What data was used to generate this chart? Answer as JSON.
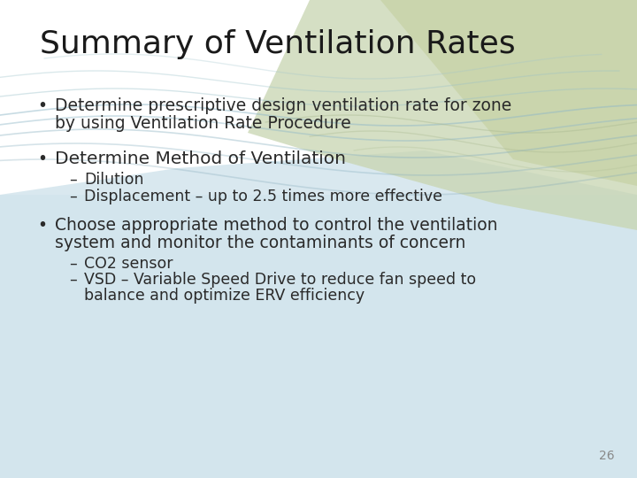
{
  "title": "Summary of Ventilation Rates",
  "title_fontsize": 26,
  "title_color": "#1A1A1A",
  "bullet1_line1": "Determine prescriptive design ventilation rate for zone",
  "bullet1_line2": "by using Ventilation Rate Procedure",
  "bullet2": "Determine Method of Ventilation",
  "sub2a": "Dilution",
  "sub2b": "Displacement – up to 2.5 times more effective",
  "bullet3_line1": "Choose appropriate method to control the ventilation",
  "bullet3_line2": "system and monitor the contaminants of concern",
  "sub3a": "CO2 sensor",
  "sub3b_line1": "VSD – Variable Speed Drive to reduce fan speed to",
  "sub3b_line2": "balance and optimize ERV efficiency",
  "page_number": "26",
  "text_color": "#2A2A2A",
  "bullet_fontsize": 13.5,
  "sub_fontsize": 12.5,
  "bg_white": "#FFFFFF",
  "bg_blue": "#D3E5ED",
  "bg_olive": "#C8D5B0",
  "wave_color_blue": "#A8C4D0",
  "wave_color_olive": "#B8C8A0"
}
